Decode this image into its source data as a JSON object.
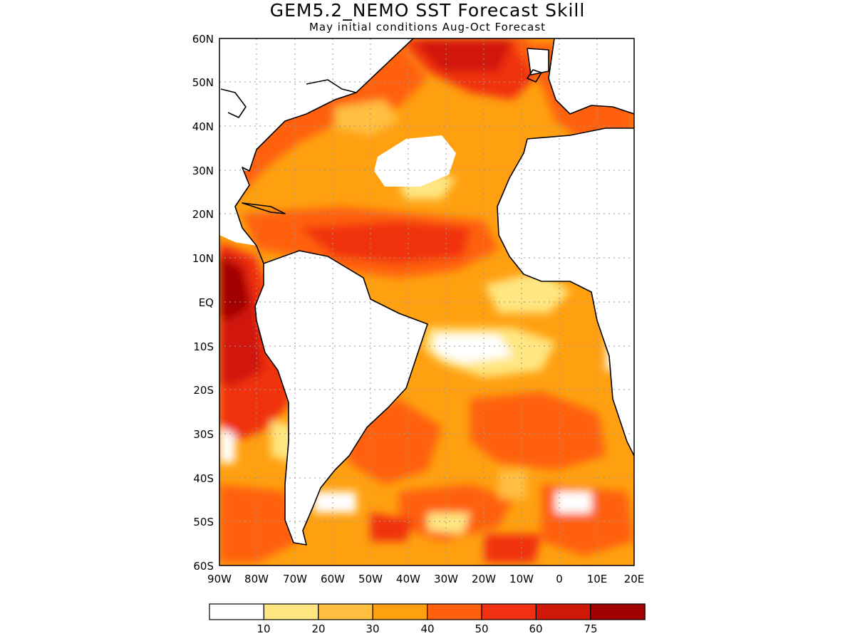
{
  "header": {
    "title": "GEM5.2_NEMO SST Forecast Skill",
    "subtitle": "May initial conditions  Aug-Oct Forecast"
  },
  "map": {
    "lat_labels": [
      "60N",
      "50N",
      "40N",
      "30N",
      "20N",
      "10N",
      "EQ",
      "10S",
      "20S",
      "30S",
      "40S",
      "50S",
      "60S"
    ],
    "lon_labels": [
      "90W",
      "80W",
      "70W",
      "60W",
      "50W",
      "40W",
      "30W",
      "20W",
      "10W",
      "0",
      "10E",
      "20E"
    ],
    "lon_range": [
      -90,
      20
    ],
    "lat_range": [
      -60,
      60
    ],
    "grid": "dotted"
  },
  "legend": {
    "thresholds": [
      "10",
      "20",
      "30",
      "40",
      "50",
      "60",
      "75"
    ],
    "colors": [
      "#ffffff",
      "#ffe680",
      "#ffbf40",
      "#ffa010",
      "#ff6010",
      "#f03010",
      "#d01808",
      "#a00000"
    ]
  },
  "features": {
    "high_skill_regions": [
      {
        "name": "Eastern tropical Pacific",
        "level": "75+"
      },
      {
        "name": "Northeast Atlantic",
        "level": "60-75"
      },
      {
        "name": "Tropical North Atlantic",
        "level": "50-60"
      }
    ]
  }
}
